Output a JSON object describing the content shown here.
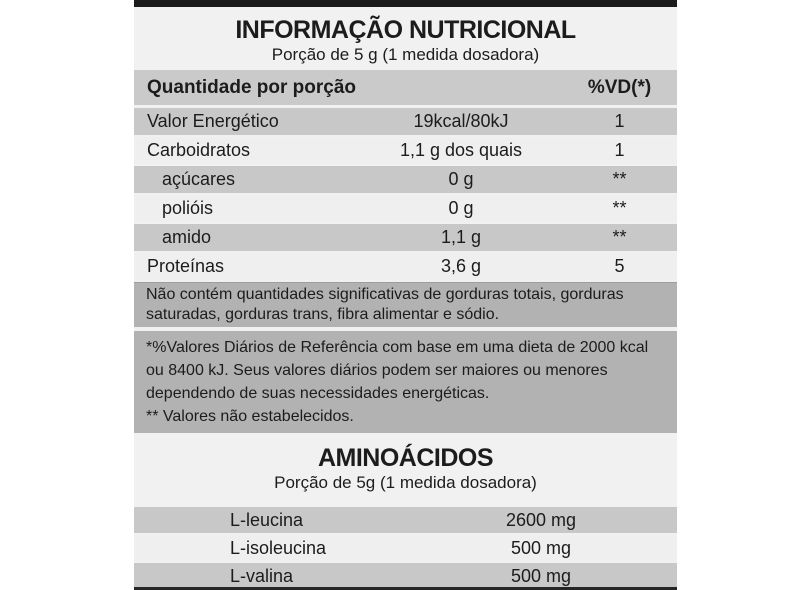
{
  "nutrition": {
    "title": "INFORMAÇÃO NUTRICIONAL",
    "subtitle": "Porção de 5 g (1 medida dosadora)",
    "column_headers": {
      "quantity": "Quantidade por porção",
      "daily_value": "%VD(*)"
    },
    "rows": [
      {
        "name": "Valor Energético",
        "amount": "19kcal/80kJ",
        "vd": "1"
      },
      {
        "name": "Carboidratos",
        "amount": "1,1 g dos quais",
        "vd": "1"
      },
      {
        "name": "açúcares",
        "amount": "0 g",
        "vd": "**"
      },
      {
        "name": "polióis",
        "amount": "0 g",
        "vd": "**"
      },
      {
        "name": "amido",
        "amount": "1,1 g",
        "vd": "**"
      },
      {
        "name": "Proteínas",
        "amount": "3,6 g",
        "vd": "5"
      }
    ],
    "note": "Não contém quantidades significativas de gorduras totais, gorduras saturadas, gorduras trans, fibra alimentar e sódio.",
    "footnote_reference": "*%Valores Diários de Referência com base em uma dieta de 2000 kcal ou 8400 kJ. Seus valores diários podem ser maiores ou menores dependendo de suas necessidades energéticas.",
    "footnote_not_established": "** Valores não estabelecidos."
  },
  "amino_acids": {
    "title": "AMINOÁCIDOS",
    "subtitle": "Porção de 5g (1 medida dosadora)",
    "rows": [
      {
        "name": "L-leucina",
        "amount": "2600 mg"
      },
      {
        "name": "L-isoleucina",
        "amount": "500 mg"
      },
      {
        "name": "L-valina",
        "amount": "500 mg"
      }
    ]
  },
  "colors": {
    "page_background": "#ffffff",
    "label_background": "#f1f1f1",
    "row_gray": "#c8c8c8",
    "row_light": "#efefef",
    "header_gray": "#cacaca",
    "note_gray": "#b2b2b2",
    "bar_black": "#1b1b1b",
    "text": "#1c1c1c"
  }
}
